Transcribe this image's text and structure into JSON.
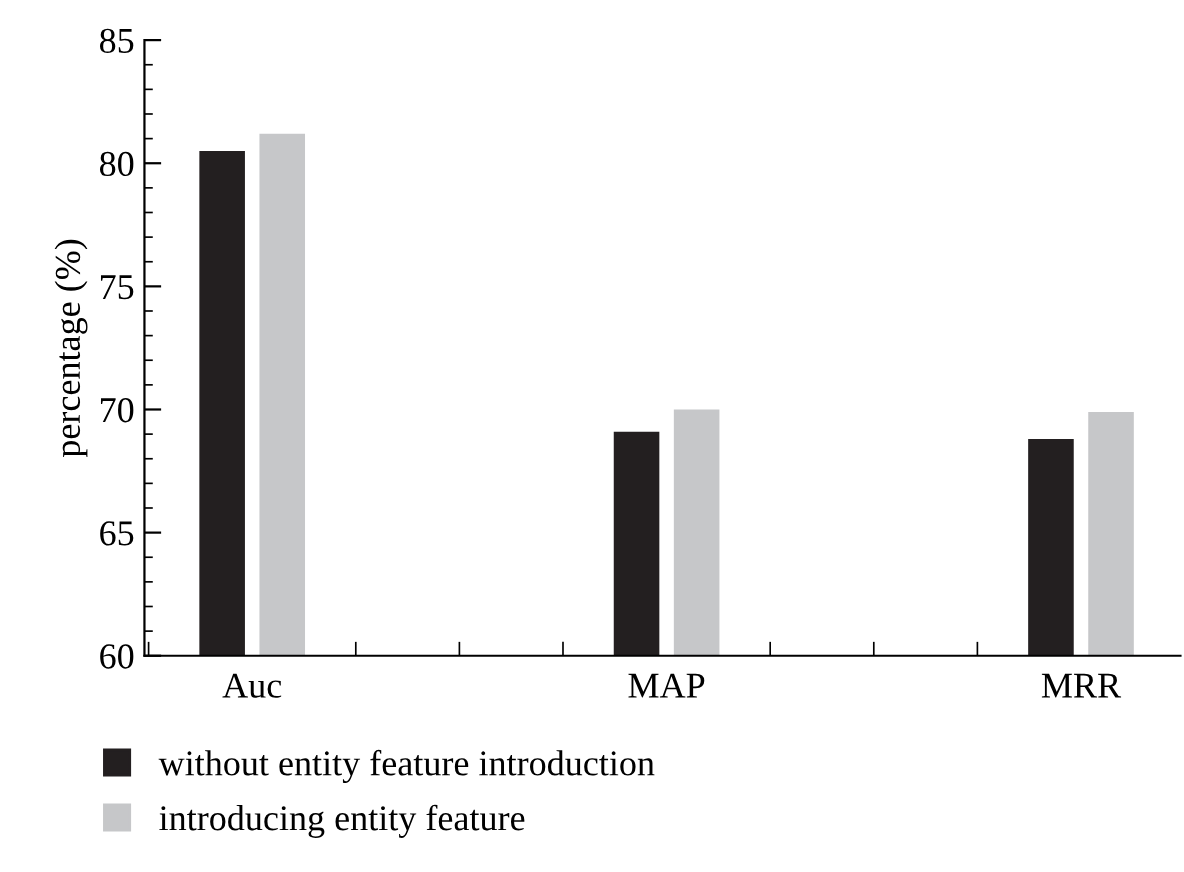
{
  "chart_data": {
    "type": "bar",
    "ylabel": "percentage (%)",
    "categories": [
      "Auc",
      "MAP",
      "MRR"
    ],
    "series": [
      {
        "name": "without entity feature introduction",
        "color": "#231f20",
        "values": [
          80.5,
          69.1,
          68.8
        ]
      },
      {
        "name": "introducing entity feature",
        "color": "#c6c7c9",
        "values": [
          81.2,
          70.0,
          69.9
        ]
      }
    ],
    "ylim": [
      60,
      85
    ],
    "yticks": [
      60,
      65,
      70,
      75,
      80,
      85
    ],
    "grid": false,
    "legend": "bottom left"
  }
}
